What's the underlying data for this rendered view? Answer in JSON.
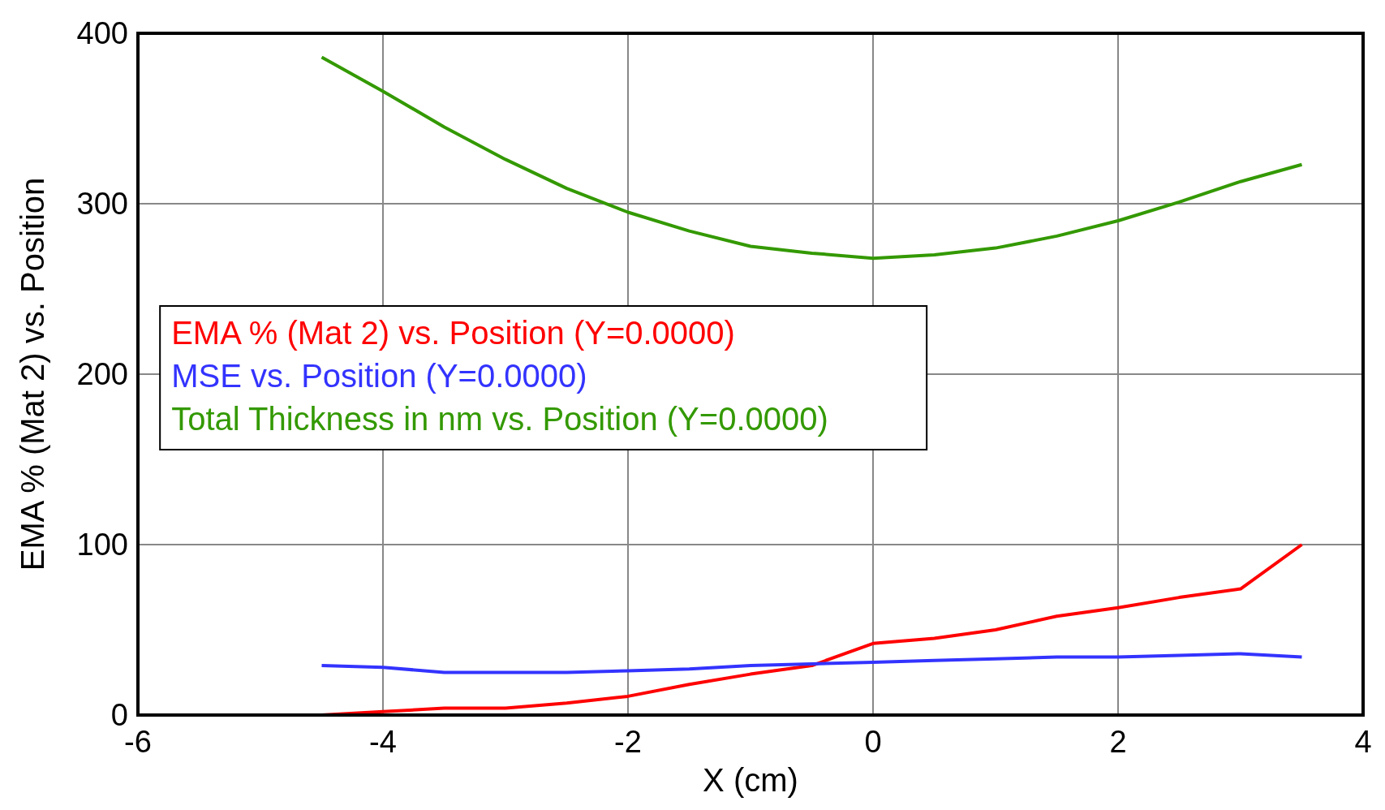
{
  "chart_data": {
    "type": "line",
    "xlabel": "X (cm)",
    "ylabel": "EMA % (Mat 2) vs. Position",
    "x": [
      -4.5,
      -4,
      -3.5,
      -3,
      -2.5,
      -2,
      -1.5,
      -1,
      -0.5,
      0,
      0.5,
      1,
      1.5,
      2,
      2.5,
      3,
      3.5
    ],
    "series": [
      {
        "name": "EMA % (Mat 2) vs. Position (Y=0.0000)",
        "color": "#ff0000",
        "values": [
          0,
          2,
          4,
          4,
          7,
          11,
          18,
          24,
          29,
          42,
          45,
          50,
          58,
          63,
          69,
          74,
          100
        ]
      },
      {
        "name": "MSE vs. Position (Y=0.0000)",
        "color": "#3333ff",
        "values": [
          29,
          28,
          25,
          25,
          25,
          26,
          27,
          29,
          30,
          31,
          32,
          33,
          34,
          34,
          35,
          36,
          34
        ]
      },
      {
        "name": "Total Thickness in nm vs. Position (Y=0.0000)",
        "color": "#339900",
        "values": [
          386,
          366,
          345,
          326,
          309,
          295,
          284,
          275,
          271,
          268,
          270,
          274,
          281,
          290,
          301,
          313,
          323
        ]
      }
    ],
    "xlim": [
      -6,
      4
    ],
    "xticks": [
      -6,
      -4,
      -2,
      0,
      2,
      4
    ],
    "ylim": [
      0,
      400
    ],
    "yticks": [
      0,
      100,
      200,
      300,
      400
    ],
    "grid": true,
    "legend": "left",
    "marker": "none",
    "line_style": "solid"
  }
}
